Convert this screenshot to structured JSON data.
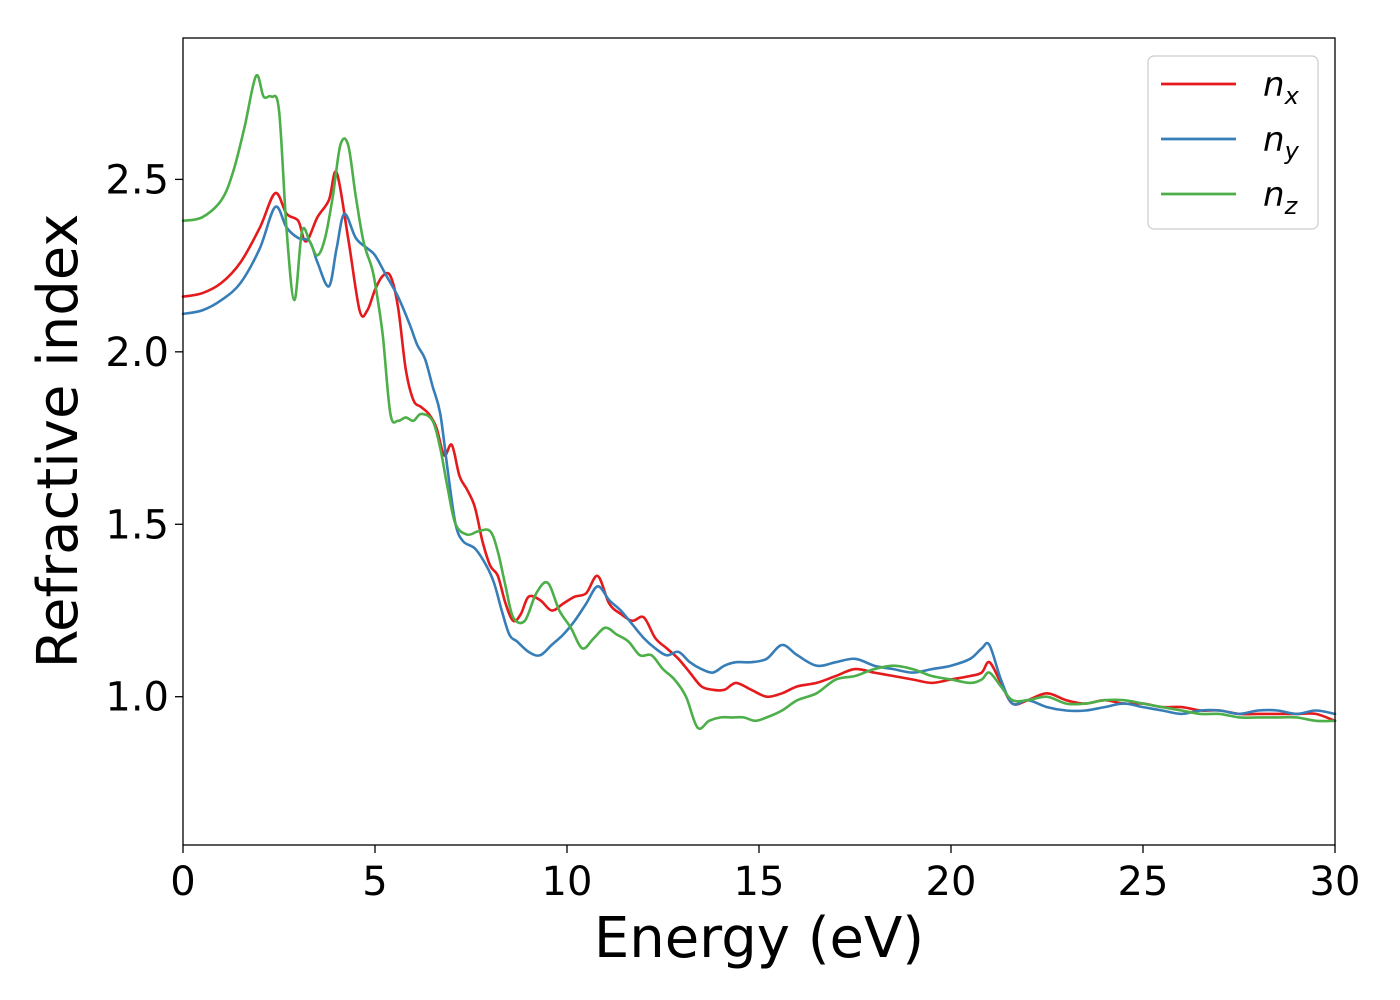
{
  "chart_data": {
    "type": "line",
    "title": "",
    "xlabel": "Energy (eV)",
    "ylabel": "Refractive index",
    "xlim": [
      0,
      30
    ],
    "ylim": [
      0.57,
      2.91
    ],
    "xticks": [
      0,
      5,
      10,
      15,
      20,
      25,
      30
    ],
    "xtick_labels": [
      "0",
      "5",
      "10",
      "15",
      "20",
      "25",
      "30"
    ],
    "yticks": [
      1.0,
      1.5,
      2.0,
      2.5
    ],
    "ytick_labels": [
      "1.0",
      "1.5",
      "2.0",
      "2.5"
    ],
    "grid": false,
    "legend_position": "top-right",
    "series": [
      {
        "name": "n_x",
        "legend_main": "n",
        "legend_sub": "x",
        "color": "#e41a1c",
        "x": [
          0,
          0.5,
          1.0,
          1.5,
          2.0,
          2.4,
          2.7,
          3.0,
          3.2,
          3.5,
          3.8,
          4.0,
          4.3,
          4.6,
          4.8,
          5.0,
          5.2,
          5.4,
          5.6,
          5.8,
          6.0,
          6.2,
          6.4,
          6.6,
          6.8,
          7.0,
          7.2,
          7.4,
          7.6,
          7.8,
          8.0,
          8.2,
          8.4,
          8.6,
          8.8,
          9.0,
          9.3,
          9.6,
          9.9,
          10.2,
          10.5,
          10.8,
          11.1,
          11.4,
          11.7,
          12.0,
          12.3,
          12.6,
          12.9,
          13.2,
          13.5,
          13.8,
          14.1,
          14.4,
          14.8,
          15.2,
          15.6,
          16.0,
          16.5,
          17.0,
          17.5,
          18.0,
          18.5,
          19.0,
          19.5,
          20.0,
          20.5,
          20.8,
          21.0,
          21.3,
          21.6,
          22.0,
          22.5,
          23.0,
          23.5,
          24.0,
          24.5,
          25.0,
          25.5,
          26.0,
          26.5,
          27.0,
          27.5,
          28.0,
          28.5,
          29.0,
          29.5,
          30.0
        ],
        "y": [
          2.16,
          2.17,
          2.2,
          2.26,
          2.36,
          2.46,
          2.4,
          2.38,
          2.32,
          2.39,
          2.44,
          2.52,
          2.33,
          2.12,
          2.12,
          2.18,
          2.22,
          2.22,
          2.13,
          1.95,
          1.86,
          1.84,
          1.82,
          1.78,
          1.7,
          1.73,
          1.64,
          1.6,
          1.55,
          1.45,
          1.38,
          1.35,
          1.27,
          1.22,
          1.24,
          1.29,
          1.28,
          1.25,
          1.27,
          1.29,
          1.3,
          1.35,
          1.27,
          1.24,
          1.22,
          1.23,
          1.17,
          1.14,
          1.11,
          1.07,
          1.03,
          1.02,
          1.02,
          1.04,
          1.02,
          1.0,
          1.01,
          1.03,
          1.04,
          1.06,
          1.08,
          1.07,
          1.06,
          1.05,
          1.04,
          1.05,
          1.06,
          1.07,
          1.1,
          1.04,
          0.98,
          0.99,
          1.01,
          0.99,
          0.98,
          0.99,
          0.98,
          0.98,
          0.97,
          0.97,
          0.96,
          0.96,
          0.95,
          0.95,
          0.95,
          0.95,
          0.95,
          0.93
        ]
      },
      {
        "name": "n_y",
        "legend_main": "n",
        "legend_sub": "y",
        "color": "#377eb8",
        "x": [
          0,
          0.5,
          1.0,
          1.5,
          2.0,
          2.4,
          2.7,
          3.0,
          3.3,
          3.5,
          3.8,
          4.0,
          4.2,
          4.5,
          4.8,
          5.0,
          5.3,
          5.6,
          5.9,
          6.1,
          6.3,
          6.5,
          6.7,
          6.9,
          7.1,
          7.3,
          7.6,
          7.9,
          8.1,
          8.3,
          8.5,
          8.7,
          9.0,
          9.3,
          9.6,
          9.9,
          10.2,
          10.5,
          10.8,
          11.1,
          11.4,
          11.7,
          12.0,
          12.3,
          12.6,
          12.9,
          13.2,
          13.5,
          13.8,
          14.1,
          14.4,
          14.8,
          15.2,
          15.6,
          16.0,
          16.5,
          17.0,
          17.5,
          18.0,
          18.5,
          19.0,
          19.5,
          20.0,
          20.5,
          20.8,
          21.0,
          21.3,
          21.6,
          22.0,
          22.5,
          23.0,
          23.5,
          24.0,
          24.5,
          25.0,
          25.5,
          26.0,
          26.5,
          27.0,
          27.5,
          28.0,
          28.5,
          29.0,
          29.5,
          30.0
        ],
        "y": [
          2.11,
          2.12,
          2.15,
          2.2,
          2.3,
          2.42,
          2.36,
          2.33,
          2.32,
          2.26,
          2.19,
          2.3,
          2.4,
          2.33,
          2.3,
          2.28,
          2.22,
          2.16,
          2.08,
          2.02,
          1.98,
          1.9,
          1.82,
          1.65,
          1.5,
          1.45,
          1.43,
          1.38,
          1.33,
          1.25,
          1.18,
          1.16,
          1.13,
          1.12,
          1.15,
          1.18,
          1.22,
          1.27,
          1.32,
          1.28,
          1.25,
          1.21,
          1.17,
          1.14,
          1.12,
          1.13,
          1.1,
          1.08,
          1.07,
          1.09,
          1.1,
          1.1,
          1.11,
          1.15,
          1.12,
          1.09,
          1.1,
          1.11,
          1.09,
          1.08,
          1.07,
          1.08,
          1.09,
          1.11,
          1.14,
          1.15,
          1.05,
          0.98,
          0.99,
          0.97,
          0.96,
          0.96,
          0.97,
          0.98,
          0.97,
          0.96,
          0.95,
          0.96,
          0.96,
          0.95,
          0.96,
          0.96,
          0.95,
          0.96,
          0.95
        ]
      },
      {
        "name": "n_z",
        "legend_main": "n",
        "legend_sub": "z",
        "color": "#4daf4a",
        "x": [
          0,
          0.5,
          1.0,
          1.3,
          1.6,
          1.9,
          2.1,
          2.3,
          2.5,
          2.7,
          2.9,
          3.1,
          3.3,
          3.5,
          3.7,
          3.9,
          4.1,
          4.3,
          4.5,
          4.7,
          4.9,
          5.0,
          5.2,
          5.4,
          5.6,
          5.8,
          6.0,
          6.2,
          6.5,
          6.7,
          6.9,
          7.1,
          7.4,
          7.7,
          8.0,
          8.2,
          8.4,
          8.6,
          8.9,
          9.2,
          9.5,
          9.8,
          10.1,
          10.4,
          10.7,
          11.0,
          11.3,
          11.6,
          11.9,
          12.2,
          12.5,
          12.8,
          13.1,
          13.4,
          13.7,
          14.0,
          14.3,
          14.6,
          14.9,
          15.2,
          15.6,
          16.0,
          16.5,
          17.0,
          17.5,
          18.0,
          18.5,
          19.0,
          19.5,
          20.0,
          20.5,
          20.8,
          21.0,
          21.3,
          21.6,
          22.0,
          22.5,
          23.0,
          23.5,
          24.0,
          24.5,
          25.0,
          25.5,
          26.0,
          26.5,
          27.0,
          27.5,
          28.0,
          28.5,
          29.0,
          29.5,
          30.0
        ],
        "y": [
          2.38,
          2.39,
          2.44,
          2.52,
          2.65,
          2.8,
          2.74,
          2.74,
          2.7,
          2.35,
          2.15,
          2.35,
          2.32,
          2.28,
          2.33,
          2.45,
          2.6,
          2.6,
          2.45,
          2.32,
          2.25,
          2.2,
          2.05,
          1.82,
          1.8,
          1.81,
          1.8,
          1.82,
          1.8,
          1.72,
          1.6,
          1.5,
          1.47,
          1.48,
          1.48,
          1.42,
          1.32,
          1.23,
          1.22,
          1.3,
          1.33,
          1.25,
          1.2,
          1.14,
          1.17,
          1.2,
          1.18,
          1.16,
          1.12,
          1.12,
          1.08,
          1.05,
          1.0,
          0.91,
          0.93,
          0.94,
          0.94,
          0.94,
          0.93,
          0.94,
          0.96,
          0.99,
          1.01,
          1.05,
          1.06,
          1.08,
          1.09,
          1.08,
          1.06,
          1.05,
          1.04,
          1.05,
          1.07,
          1.03,
          0.99,
          0.99,
          1.0,
          0.98,
          0.98,
          0.99,
          0.99,
          0.98,
          0.97,
          0.96,
          0.95,
          0.95,
          0.94,
          0.94,
          0.94,
          0.94,
          0.93,
          0.93
        ]
      }
    ]
  }
}
